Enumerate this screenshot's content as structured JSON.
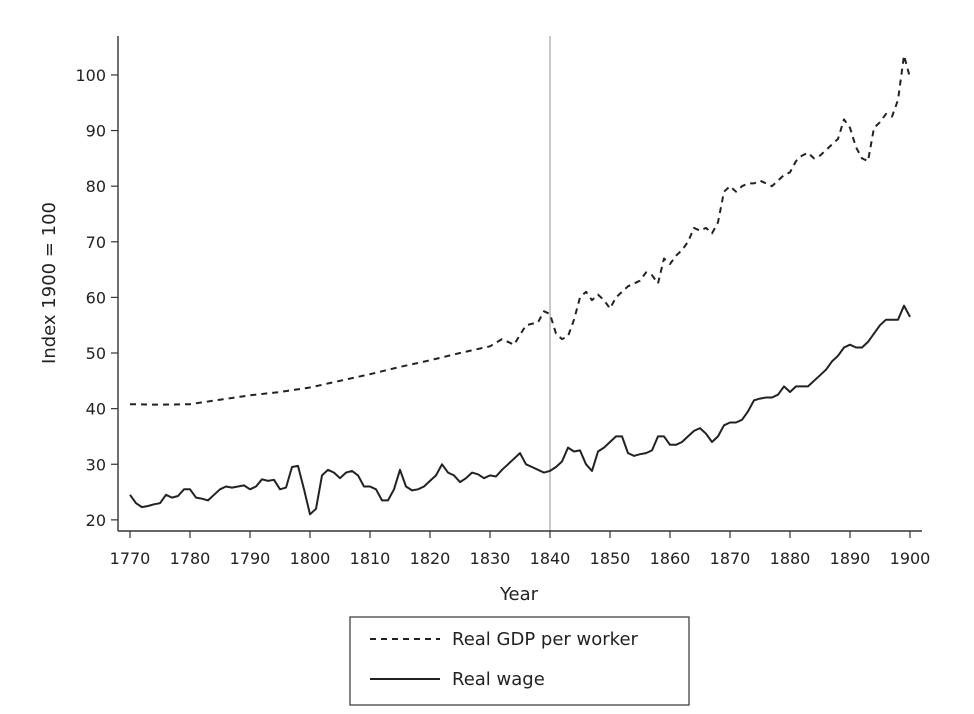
{
  "chart_data": {
    "type": "line",
    "title": "",
    "xlabel": "Year",
    "ylabel": "Index 1900 = 100",
    "xlim": [
      1768,
      1902
    ],
    "ylim": [
      18,
      107
    ],
    "x_ticks": [
      1770,
      1780,
      1790,
      1800,
      1810,
      1820,
      1830,
      1840,
      1850,
      1860,
      1870,
      1880,
      1890,
      1900
    ],
    "y_ticks": [
      20,
      30,
      40,
      50,
      60,
      70,
      80,
      90,
      100
    ],
    "grid": false,
    "reference_line_x": 1840,
    "legend_position": "bottom-center",
    "series": [
      {
        "name": "Real GDP per worker",
        "style": "dashed",
        "color": "#222222",
        "x": [
          1770,
          1775,
          1780,
          1785,
          1790,
          1795,
          1800,
          1805,
          1810,
          1815,
          1820,
          1825,
          1830,
          1832,
          1834,
          1836,
          1838,
          1839,
          1840,
          1841,
          1842,
          1843,
          1844,
          1845,
          1846,
          1847,
          1848,
          1849,
          1850,
          1851,
          1852,
          1853,
          1854,
          1855,
          1856,
          1857,
          1858,
          1859,
          1860,
          1861,
          1862,
          1863,
          1864,
          1865,
          1866,
          1867,
          1868,
          1869,
          1870,
          1871,
          1872,
          1873,
          1874,
          1875,
          1876,
          1877,
          1878,
          1879,
          1880,
          1881,
          1882,
          1883,
          1884,
          1885,
          1886,
          1887,
          1888,
          1889,
          1890,
          1891,
          1892,
          1893,
          1894,
          1895,
          1896,
          1897,
          1898,
          1899,
          1900
        ],
        "values": [
          40.8,
          40.7,
          40.8,
          41.6,
          42.4,
          43.0,
          43.8,
          45.0,
          46.2,
          47.5,
          48.7,
          50.0,
          51.2,
          52.5,
          51.5,
          55.0,
          55.5,
          57.5,
          57.0,
          53.5,
          52.5,
          53.0,
          56.0,
          60.0,
          61.0,
          59.5,
          60.5,
          59.5,
          58.0,
          60.0,
          61.0,
          62.0,
          62.5,
          63.0,
          64.5,
          64.0,
          62.5,
          67.0,
          66.0,
          67.5,
          68.5,
          70.0,
          72.5,
          72.0,
          72.5,
          71.5,
          73.5,
          79.0,
          80.0,
          79.0,
          80.0,
          80.5,
          80.5,
          81.0,
          80.5,
          80.0,
          81.0,
          82.0,
          82.5,
          84.5,
          85.5,
          86.0,
          85.0,
          85.5,
          86.5,
          87.5,
          88.5,
          92.0,
          90.5,
          87.0,
          85.0,
          84.5,
          90.5,
          91.5,
          93.0,
          92.5,
          95.5,
          103.5,
          99.5
        ]
      },
      {
        "name": "Real wage",
        "style": "solid",
        "color": "#222222",
        "x": [
          1770,
          1771,
          1772,
          1773,
          1774,
          1775,
          1776,
          1777,
          1778,
          1779,
          1780,
          1781,
          1782,
          1783,
          1784,
          1785,
          1786,
          1787,
          1788,
          1789,
          1790,
          1791,
          1792,
          1793,
          1794,
          1795,
          1796,
          1797,
          1798,
          1799,
          1800,
          1801,
          1802,
          1803,
          1804,
          1805,
          1806,
          1807,
          1808,
          1809,
          1810,
          1811,
          1812,
          1813,
          1814,
          1815,
          1816,
          1817,
          1818,
          1819,
          1820,
          1821,
          1822,
          1823,
          1824,
          1825,
          1826,
          1827,
          1828,
          1829,
          1830,
          1831,
          1832,
          1833,
          1834,
          1835,
          1836,
          1837,
          1838,
          1839,
          1840,
          1841,
          1842,
          1843,
          1844,
          1845,
          1846,
          1847,
          1848,
          1849,
          1850,
          1851,
          1852,
          1853,
          1854,
          1855,
          1856,
          1857,
          1858,
          1859,
          1860,
          1861,
          1862,
          1863,
          1864,
          1865,
          1866,
          1867,
          1868,
          1869,
          1870,
          1871,
          1872,
          1873,
          1874,
          1875,
          1876,
          1877,
          1878,
          1879,
          1880,
          1881,
          1882,
          1883,
          1884,
          1885,
          1886,
          1887,
          1888,
          1889,
          1890,
          1891,
          1892,
          1893,
          1894,
          1895,
          1896,
          1897,
          1898,
          1899,
          1900
        ],
        "values": [
          24.5,
          23.0,
          22.3,
          22.5,
          22.8,
          23.0,
          24.5,
          24.0,
          24.3,
          25.5,
          25.5,
          24.0,
          23.8,
          23.5,
          24.5,
          25.5,
          26.0,
          25.8,
          26.0,
          26.2,
          25.5,
          26.0,
          27.3,
          27.0,
          27.2,
          25.5,
          25.8,
          29.5,
          29.7,
          25.5,
          21.0,
          22.0,
          28.0,
          29.0,
          28.5,
          27.5,
          28.5,
          28.8,
          28.0,
          26.0,
          26.0,
          25.5,
          23.5,
          23.5,
          25.5,
          29.0,
          26.0,
          25.3,
          25.5,
          26.0,
          27.0,
          28.0,
          30.0,
          28.5,
          28.0,
          26.8,
          27.5,
          28.5,
          28.2,
          27.5,
          28.0,
          27.8,
          29.0,
          30.0,
          31.0,
          32.0,
          30.0,
          29.5,
          29.0,
          28.5,
          28.8,
          29.5,
          30.5,
          33.0,
          32.3,
          32.5,
          30.0,
          28.8,
          32.3,
          33.0,
          34.0,
          35.0,
          35.0,
          32.0,
          31.5,
          31.8,
          32.0,
          32.5,
          35.0,
          35.0,
          33.5,
          33.5,
          34.0,
          35.0,
          36.0,
          36.5,
          35.5,
          34.0,
          35.0,
          37.0,
          37.5,
          37.5,
          38.0,
          39.5,
          41.5,
          41.8,
          42.0,
          42.0,
          42.5,
          44.0,
          43.0,
          44.0,
          44.0,
          44.0,
          45.0,
          46.0,
          47.0,
          48.5,
          49.5,
          51.0,
          51.5,
          51.0,
          51.0,
          52.0,
          53.5,
          55.0,
          56.0,
          56.0,
          56.0,
          58.5,
          56.5
        ]
      }
    ]
  }
}
